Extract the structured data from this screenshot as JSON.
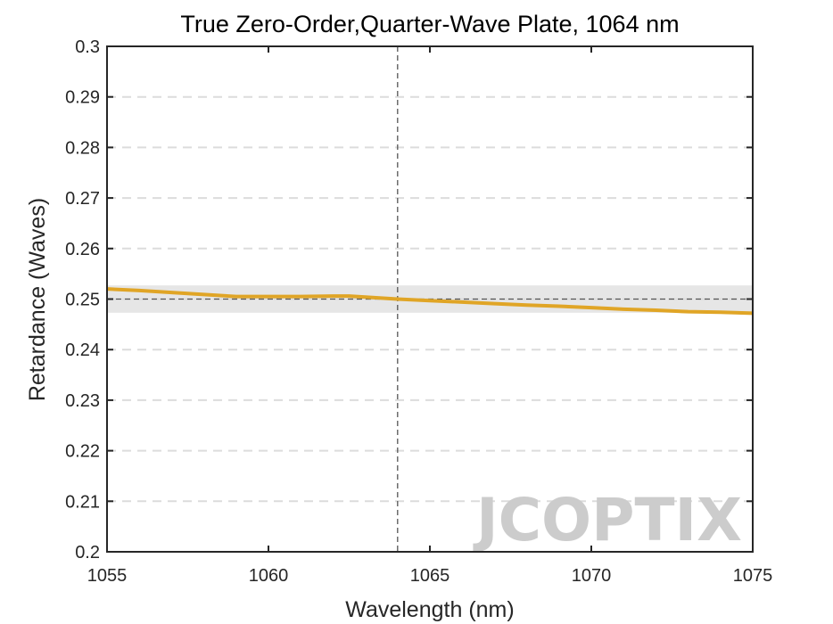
{
  "chart_data": {
    "type": "line",
    "title": "True Zero-Order,Quarter-Wave Plate, 1064 nm",
    "xlabel": "Wavelength (nm)",
    "ylabel": "Retardance (Waves)",
    "xlim": [
      1055,
      1075
    ],
    "ylim": [
      0.2,
      0.3
    ],
    "xticks": [
      "1055",
      "1060",
      "1065",
      "1070",
      "1075"
    ],
    "yticks": [
      "0.2",
      "0.21",
      "0.22",
      "0.23",
      "0.24",
      "0.25",
      "0.26",
      "0.27",
      "0.28",
      "0.29",
      "0.3"
    ],
    "grid": "horizontal dashed",
    "design_wavelength": 1064,
    "target_retardance": 0.25,
    "tolerance_band": [
      0.2473,
      0.2527
    ],
    "series": [
      {
        "color": "#E0A526",
        "x": [
          1055,
          1056,
          1057,
          1058,
          1059,
          1060,
          1061,
          1062,
          1062.5,
          1063,
          1064,
          1065,
          1066,
          1067,
          1068,
          1069,
          1070,
          1071,
          1072,
          1073,
          1074,
          1075
        ],
        "y": [
          0.252,
          0.2517,
          0.2513,
          0.2509,
          0.2505,
          0.2505,
          0.2505,
          0.2506,
          0.2506,
          0.2504,
          0.25,
          0.2497,
          0.2494,
          0.2491,
          0.2488,
          0.2486,
          0.2483,
          0.248,
          0.2478,
          0.2475,
          0.2474,
          0.2472
        ]
      }
    ]
  },
  "watermark": {
    "text": "JCOPTIX",
    "color": "#CCCCCC",
    "accent": "#F2C79B"
  }
}
